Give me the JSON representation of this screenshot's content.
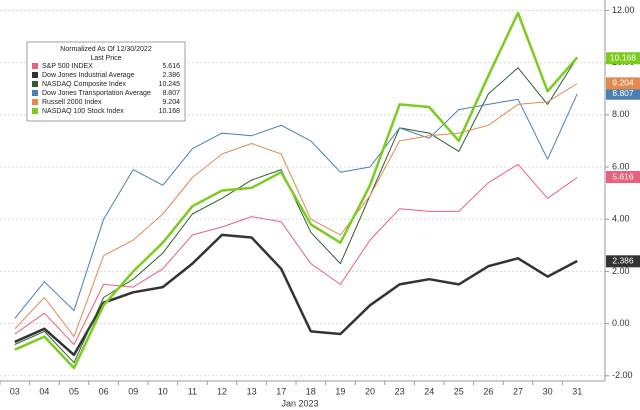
{
  "chart_data": {
    "type": "line",
    "legend_title": "Normalized As Of 12/30/2022",
    "legend_subtitle": "Last Price",
    "x_label": "Jan 2023",
    "categories": [
      "03",
      "04",
      "05",
      "06",
      "09",
      "10",
      "11",
      "12",
      "13",
      "17",
      "18",
      "19",
      "20",
      "23",
      "24",
      "25",
      "26",
      "27",
      "30",
      "31"
    ],
    "ylim": [
      -2.2,
      12.4
    ],
    "yticks": [
      {
        "value": 12,
        "label": "12.00"
      },
      {
        "value": 10,
        "label": "10.00"
      },
      {
        "value": 8,
        "label": "8.00"
      },
      {
        "value": 6,
        "label": "6.00"
      },
      {
        "value": 4,
        "label": "4.00"
      },
      {
        "value": 2,
        "label": "2.00"
      },
      {
        "value": 0,
        "label": "0.00"
      },
      {
        "value": -2,
        "label": "-2.00"
      }
    ],
    "grid": true,
    "legend": "upper left",
    "series": [
      {
        "name": "S&P 500 INDEX",
        "color": "#e8607a",
        "width": 1,
        "last": 5.616,
        "badge": true,
        "values": [
          -0.4,
          0.4,
          -0.8,
          1.5,
          1.4,
          2.1,
          3.4,
          3.7,
          4.1,
          3.9,
          2.3,
          1.5,
          3.2,
          4.4,
          4.3,
          4.3,
          5.4,
          6.1,
          4.8,
          5.6
        ]
      },
      {
        "name": "Dow Jones Industrial Average",
        "color": "#333333",
        "width": 2.5,
        "last": 2.386,
        "badge": true,
        "values": [
          -0.7,
          -0.2,
          -1.2,
          0.8,
          1.2,
          1.4,
          2.3,
          3.4,
          3.3,
          2.1,
          -0.3,
          -0.4,
          0.7,
          1.5,
          1.7,
          1.5,
          2.2,
          2.5,
          1.8,
          2.4
        ]
      },
      {
        "name": "NASDAQ Composite Index",
        "color": "#2e5e2e",
        "width": 1,
        "last": 10.245,
        "badge": false,
        "values": [
          -0.8,
          -0.3,
          -1.5,
          1.0,
          1.7,
          2.7,
          4.2,
          4.8,
          5.5,
          5.9,
          3.5,
          2.3,
          4.9,
          7.5,
          7.3,
          6.6,
          8.8,
          9.8,
          8.4,
          10.2
        ]
      },
      {
        "name": "Dow Jones Transportation Average",
        "color": "#4a7fb0",
        "width": 1,
        "last": 8.807,
        "badge": true,
        "values": [
          0.2,
          1.6,
          0.5,
          4.0,
          5.9,
          5.3,
          6.7,
          7.3,
          7.2,
          7.6,
          7.0,
          5.8,
          6.0,
          7.5,
          7.1,
          8.2,
          8.4,
          8.6,
          6.3,
          8.8
        ]
      },
      {
        "name": "Russell 2000 Index",
        "color": "#e08a50",
        "width": 1,
        "last": 9.204,
        "badge": true,
        "values": [
          -0.2,
          1.0,
          -0.5,
          2.6,
          3.2,
          4.2,
          5.6,
          6.5,
          6.9,
          6.5,
          4.0,
          3.4,
          4.9,
          7.0,
          7.2,
          7.3,
          7.6,
          8.4,
          8.5,
          9.2
        ]
      },
      {
        "name": "NASDAQ 100 Stock Index",
        "color": "#7ccc20",
        "width": 2.5,
        "last": 10.168,
        "badge": true,
        "values": [
          -1.0,
          -0.5,
          -1.7,
          0.7,
          2.0,
          3.1,
          4.5,
          5.1,
          5.2,
          5.8,
          3.8,
          3.1,
          5.3,
          8.4,
          8.3,
          7.0,
          9.5,
          11.9,
          8.9,
          10.2
        ]
      }
    ]
  }
}
